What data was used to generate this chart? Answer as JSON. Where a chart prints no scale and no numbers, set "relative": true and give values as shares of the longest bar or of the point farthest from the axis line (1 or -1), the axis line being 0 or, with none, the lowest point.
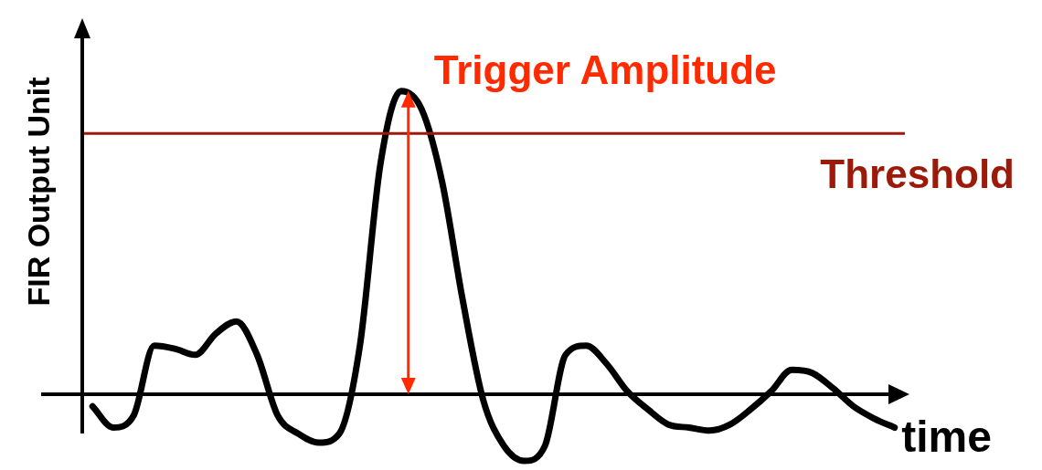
{
  "chart_data": {
    "type": "line",
    "relative": true,
    "xlabel": "time",
    "ylabel": "FIR Output Unit",
    "annotations": [
      "Trigger Amplitude"
    ],
    "categories": [
      null,
      null,
      null,
      null,
      null,
      null,
      null,
      null,
      null,
      null,
      null,
      null,
      null,
      null,
      null,
      null,
      null,
      null,
      null,
      null,
      null,
      null,
      null,
      null,
      null,
      null,
      null,
      null,
      null,
      null,
      null,
      null,
      null,
      null,
      null,
      null,
      null,
      null,
      null,
      null
    ],
    "series": [
      {
        "color": "#000000",
        "values": [
          -0.04,
          -0.11,
          -0.07,
          0.16,
          0.15,
          0.13,
          0.2,
          0.24,
          0.13,
          -0.07,
          -0.13,
          -0.16,
          -0.13,
          0.16,
          0.76,
          1.0,
          0.94,
          0.7,
          0.31,
          -0.02,
          -0.17,
          -0.22,
          -0.17,
          0.13,
          0.16,
          0.1,
          0.01,
          -0.05,
          -0.1,
          -0.11,
          -0.12,
          -0.1,
          -0.05,
          0.01,
          0.08,
          0.07,
          0.02,
          -0.04,
          -0.08,
          -0.11
        ]
      }
    ],
    "ref_lines": [
      {
        "axis": "y",
        "value": 0.86,
        "label": "Threshold",
        "color": "#9b1a0a"
      }
    ],
    "marker": "none",
    "line_style": "solid",
    "legend": false
  }
}
